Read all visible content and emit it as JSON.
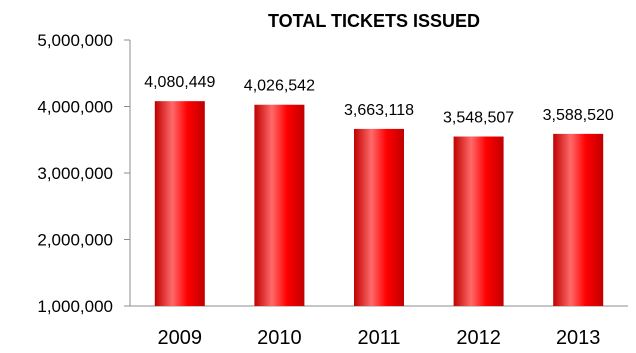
{
  "chart_data": {
    "type": "bar",
    "title": "TOTAL TICKETS ISSUED",
    "xlabel": "",
    "ylabel": "",
    "categories": [
      "2009",
      "2010",
      "2011",
      "2012",
      "2013"
    ],
    "values": [
      4080449,
      4026542,
      3663118,
      3548507,
      3588520
    ],
    "data_labels": [
      "4,080,449",
      "4,026,542",
      "3,663,118",
      "3,548,507",
      "3,588,520"
    ],
    "ylim": [
      1000000,
      5000000
    ],
    "yticks": [
      1000000,
      2000000,
      3000000,
      4000000,
      5000000
    ],
    "ytick_labels": [
      "1,000,000",
      "2,000,000",
      "3,000,000",
      "4,000,000",
      "5,000,000"
    ],
    "grid": false,
    "legend": "none",
    "colors": {
      "bar_fill": "#ff0000",
      "bar_highlight": "#ff6a6a",
      "bar_shadow": "#c00000",
      "axis": "#8c8c8c"
    }
  }
}
